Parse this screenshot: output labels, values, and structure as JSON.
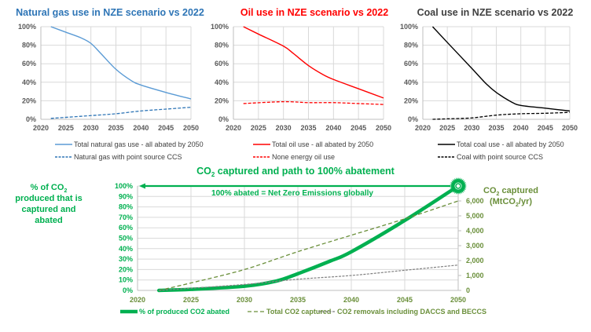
{
  "chart_data": [
    {
      "type": "line",
      "title": "Natural gas use in NZE scenario vs 2022",
      "title_color": "#2e75b6",
      "xlabel": "",
      "ylabel": "",
      "xlim": [
        2020,
        2050
      ],
      "ylim": [
        0,
        100
      ],
      "x_ticks": [
        "2020",
        "2025",
        "2030",
        "2035",
        "2040",
        "2045",
        "2050"
      ],
      "y_ticks": [
        "0%",
        "20%",
        "40%",
        "60%",
        "80%",
        "100%"
      ],
      "grid": true,
      "legend_position": "bottom",
      "series": [
        {
          "name": "Total natural gas use - all abated by 2050",
          "color": "#5b9bd5",
          "style": "solid",
          "x": [
            2022,
            2025,
            2028,
            2030,
            2032,
            2035,
            2038,
            2040,
            2045,
            2050
          ],
          "values": [
            100,
            94,
            88,
            82,
            71,
            54,
            42,
            37,
            29,
            22
          ]
        },
        {
          "name": "Natural gas with point source CCS",
          "color": "#2e75b6",
          "style": "dashed",
          "x": [
            2022,
            2030,
            2035,
            2040,
            2045,
            2050
          ],
          "values": [
            1,
            4,
            6,
            9,
            11,
            13
          ]
        }
      ]
    },
    {
      "type": "line",
      "title": "Oil use in NZE scenario vs 2022",
      "title_color": "#ff0000",
      "xlabel": "",
      "ylabel": "",
      "xlim": [
        2020,
        2050
      ],
      "ylim": [
        0,
        100
      ],
      "x_ticks": [
        "2020",
        "2025",
        "2030",
        "2035",
        "2040",
        "2045",
        "2050"
      ],
      "y_ticks": [
        "0%",
        "20%",
        "40%",
        "60%",
        "80%",
        "100%"
      ],
      "grid": true,
      "legend_position": "bottom",
      "series": [
        {
          "name": "Total oil use - all abated by 2050",
          "color": "#ff0000",
          "style": "solid",
          "x": [
            2022,
            2025,
            2030,
            2032,
            2035,
            2038,
            2040,
            2045,
            2050
          ],
          "values": [
            100,
            92,
            79,
            71,
            58,
            48,
            43,
            33,
            23
          ]
        },
        {
          "name": "None energy oil use",
          "color": "#ff0000",
          "style": "dashed",
          "x": [
            2022,
            2030,
            2035,
            2040,
            2045,
            2050
          ],
          "values": [
            17,
            19,
            18,
            18,
            17,
            16
          ]
        }
      ]
    },
    {
      "type": "line",
      "title": "Coal use in NZE scenario vs 2022",
      "title_color": "#404040",
      "xlabel": "",
      "ylabel": "",
      "xlim": [
        2020,
        2050
      ],
      "ylim": [
        0,
        100
      ],
      "x_ticks": [
        "2020",
        "2025",
        "2030",
        "2035",
        "2040",
        "2045",
        "2050"
      ],
      "y_ticks": [
        "0%",
        "20%",
        "40%",
        "60%",
        "80%",
        "100%"
      ],
      "grid": true,
      "legend_position": "bottom",
      "series": [
        {
          "name": "Total coal use - all abated by 2050",
          "color": "#000000",
          "style": "solid",
          "x": [
            2022,
            2025,
            2030,
            2033,
            2035,
            2038,
            2040,
            2045,
            2050
          ],
          "values": [
            100,
            83,
            55,
            38,
            29,
            19,
            15,
            12,
            9
          ]
        },
        {
          "name": "Coal with point source CCS",
          "color": "#000000",
          "style": "dashed",
          "x": [
            2022,
            2025,
            2030,
            2035,
            2040,
            2045,
            2050
          ],
          "values": [
            0,
            0.5,
            1.5,
            4.5,
            6,
            6.5,
            7.5
          ]
        }
      ]
    },
    {
      "type": "line",
      "title": "CO2 captured and path to 100% abatement",
      "title_color": "#00b050",
      "ylabel": "% of CO2 produced that is captured and abated",
      "y2label": "CO2 captured (MtCO2/yr)",
      "xlim": [
        2020,
        2050
      ],
      "ylim": [
        0,
        100
      ],
      "y2lim": [
        0,
        7000
      ],
      "x_ticks": [
        "2020",
        "2025",
        "2030",
        "2035",
        "2040",
        "2045",
        "2050"
      ],
      "y_ticks": [
        "0%",
        "10%",
        "20%",
        "30%",
        "40%",
        "50%",
        "60%",
        "70%",
        "80%",
        "90%",
        "100%"
      ],
      "y2_ticks": [
        "0",
        "1,000",
        "2,000",
        "3,000",
        "4,000",
        "5,000",
        "6,000"
      ],
      "grid": true,
      "legend_position": "bottom",
      "annotation": "100% abated = Net Zero Emissions globally",
      "series": [
        {
          "name": "% of produced CO2 abated",
          "axis": "left",
          "color": "#00b050",
          "style": "thick",
          "x": [
            2022,
            2025,
            2030,
            2033,
            2035,
            2038,
            2040,
            2045,
            2050
          ],
          "values": [
            0,
            1,
            4,
            9,
            16,
            28,
            37,
            67,
            100
          ]
        },
        {
          "name": "Total CO2 captured",
          "axis": "right",
          "color": "#6a8f3a",
          "style": "dashed",
          "x": [
            2022,
            2025,
            2030,
            2035,
            2040,
            2045,
            2050
          ],
          "values": [
            0,
            500,
            1400,
            2600,
            3700,
            4800,
            6000
          ]
        },
        {
          "name": "CO2 removals including DACCS and BECCS",
          "axis": "right",
          "color": "#808080",
          "style": "dotted",
          "x": [
            2022,
            2030,
            2035,
            2040,
            2045,
            2050
          ],
          "values": [
            0,
            400,
            750,
            1000,
            1350,
            1700
          ]
        }
      ]
    }
  ],
  "labels": {
    "left_axis_line1": "% of CO",
    "left_axis_sub": "2",
    "left_axis_line2": "produced that is",
    "left_axis_line3": "captured and",
    "left_axis_line4": "abated",
    "right_axis_line1a": "CO",
    "right_axis_line1b": "2",
    "right_axis_line1c": " captured",
    "right_axis_line2a": "(MtCO",
    "right_axis_line2b": "2",
    "right_axis_line2c": "/yr)",
    "bottom_title_a": "CO",
    "bottom_title_b": "2",
    "bottom_title_c": " captured and path to 100% abatement"
  }
}
